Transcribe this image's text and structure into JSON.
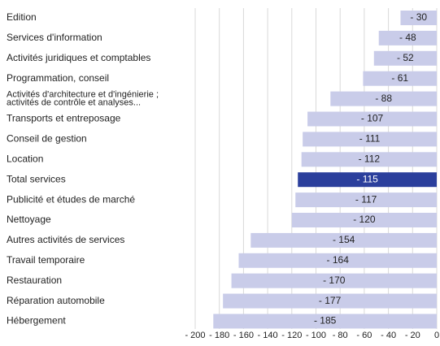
{
  "chart_data": {
    "type": "barh",
    "categories": [
      "Edition",
      "Services d'information",
      "Activités juridiques et comptables",
      "Programmation, conseil",
      [
        "Activités d'architecture et d'ingénierie ;",
        "activités de contrôle et analyses..."
      ],
      "Transports et entreposage",
      "Conseil de gestion",
      "Location",
      "Total services",
      "Publicité et études de marché",
      "Nettoyage",
      "Autres activités de services",
      "Travail temporaire",
      "Restauration",
      "Réparation automobile",
      "Hébergement"
    ],
    "values": [
      -30,
      -48,
      -52,
      -61,
      -88,
      -107,
      -111,
      -112,
      -115,
      -117,
      -120,
      -154,
      -164,
      -170,
      -177,
      -185
    ],
    "value_labels": [
      "- 30",
      "- 48",
      "- 52",
      "- 61",
      "- 88",
      "- 107",
      "- 111",
      "- 112",
      "- 115",
      "- 117",
      "- 120",
      "- 154",
      "- 164",
      "- 170",
      "- 177",
      "- 185"
    ],
    "colors": [
      "#c9cce9",
      "#c9cce9",
      "#c9cce9",
      "#c9cce9",
      "#c9cce9",
      "#c9cce9",
      "#c9cce9",
      "#c9cce9",
      "#2b3f9c",
      "#c9cce9",
      "#c9cce9",
      "#c9cce9",
      "#c9cce9",
      "#c9cce9",
      "#c9cce9",
      "#c9cce9"
    ],
    "xlim": [
      -200,
      0
    ],
    "xticks": [
      {
        "value": -200,
        "label": "- 200"
      },
      {
        "value": -180,
        "label": "- 180"
      },
      {
        "value": -160,
        "label": "- 160"
      },
      {
        "value": -140,
        "label": "- 140"
      },
      {
        "value": -120,
        "label": "- 120"
      },
      {
        "value": -100,
        "label": "- 100"
      },
      {
        "value": -80,
        "label": "- 80"
      },
      {
        "value": -60,
        "label": "- 60"
      },
      {
        "value": -40,
        "label": "- 40"
      },
      {
        "value": -20,
        "label": "- 20"
      },
      0
    ],
    "grid": true
  }
}
